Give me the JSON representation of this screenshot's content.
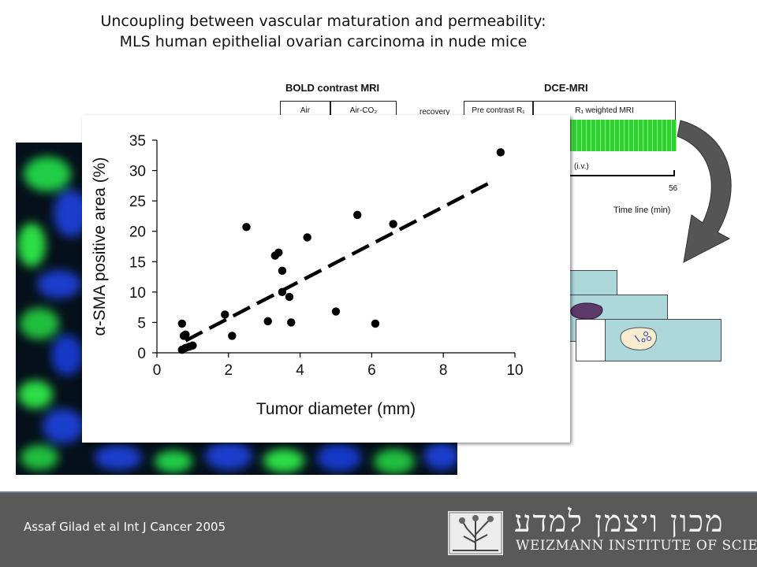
{
  "slide": {
    "title_line1": "Uncoupling between vascular maturation and permeability:",
    "title_line2": "MLS human epithelial ovarian carcinoma in nude mice",
    "citation": "Assaf Gilad et al Int J Cancer 2005"
  },
  "mri_protocol": {
    "bold_header": "BOLD contrast MRI",
    "dce_header": "DCE-MRI",
    "cells": [
      "Air",
      "Air-CO₂",
      "recovery",
      "Pre contrast R₁",
      "R₁ weighted MRI"
    ],
    "iv_label": "(i.v.)",
    "time_end": "56",
    "timeline_label": "Time line (min)"
  },
  "logo": {
    "hebrew": "מכון ויצמן למדע",
    "english": "WEIZMANN INSTITUTE OF SCIENCE"
  },
  "colors": {
    "footer": "#595959",
    "micrograph_green": "#2ee84a",
    "micrograph_blue": "#1a3fd6",
    "slice_fill": "#add8db",
    "bar_green": "#2fd22f"
  },
  "chart_data": {
    "type": "scatter",
    "title": "",
    "xlabel": "Tumor diameter (mm)",
    "ylabel": "α-SMA positive area (%)",
    "xlim": [
      0,
      10
    ],
    "ylim": [
      0,
      35
    ],
    "xticks": [
      0,
      2,
      4,
      6,
      8,
      10
    ],
    "yticks": [
      0,
      5,
      10,
      15,
      20,
      25,
      30,
      35
    ],
    "grid": false,
    "points": [
      {
        "x": 0.7,
        "y": 0.5
      },
      {
        "x": 0.8,
        "y": 0.8
      },
      {
        "x": 0.9,
        "y": 1.0
      },
      {
        "x": 1.0,
        "y": 1.2
      },
      {
        "x": 0.75,
        "y": 2.8
      },
      {
        "x": 0.8,
        "y": 3.0
      },
      {
        "x": 0.7,
        "y": 4.8
      },
      {
        "x": 1.9,
        "y": 6.3
      },
      {
        "x": 2.1,
        "y": 2.8
      },
      {
        "x": 2.5,
        "y": 20.7
      },
      {
        "x": 3.1,
        "y": 5.2
      },
      {
        "x": 3.3,
        "y": 16.0
      },
      {
        "x": 3.4,
        "y": 16.5
      },
      {
        "x": 3.5,
        "y": 13.5
      },
      {
        "x": 3.5,
        "y": 10.0
      },
      {
        "x": 3.7,
        "y": 9.2
      },
      {
        "x": 3.75,
        "y": 5.0
      },
      {
        "x": 4.2,
        "y": 19.0
      },
      {
        "x": 5.0,
        "y": 6.8
      },
      {
        "x": 5.6,
        "y": 22.7
      },
      {
        "x": 6.1,
        "y": 4.8
      },
      {
        "x": 6.6,
        "y": 21.2
      },
      {
        "x": 9.6,
        "y": 33.0
      }
    ],
    "fit_line": {
      "x": [
        0.8,
        9.3
      ],
      "y": [
        2.0,
        28.0
      ],
      "style": "dashed"
    }
  }
}
